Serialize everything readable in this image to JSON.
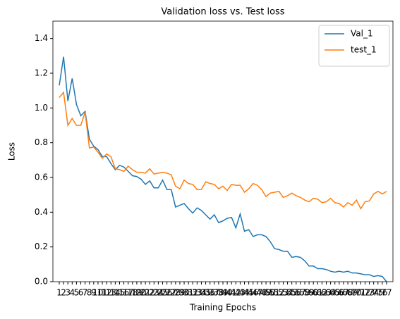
{
  "chart_data": {
    "type": "line",
    "title": "Validation loss vs. Test loss",
    "x_label": "Training Epochs",
    "y_label": "Loss",
    "categories": [
      "1",
      "2",
      "3",
      "4",
      "5",
      "6",
      "7",
      "8",
      "9",
      "10",
      "11",
      "12",
      "13",
      "14",
      "15",
      "16",
      "17",
      "18",
      "19",
      "20",
      "21",
      "22",
      "23",
      "24",
      "25",
      "26",
      "27",
      "28",
      "29",
      "30",
      "31",
      "32",
      "33",
      "34",
      "35",
      "36",
      "37",
      "38",
      "39",
      "40",
      "41",
      "42",
      "43",
      "44",
      "45",
      "46",
      "47",
      "48",
      "49",
      "50",
      "51",
      "52",
      "53",
      "54",
      "55",
      "56",
      "57",
      "58",
      "59",
      "60",
      "61",
      "62",
      "63",
      "64",
      "65",
      "66",
      "67",
      "68",
      "69",
      "70",
      "71",
      "72",
      "73",
      "74",
      "75",
      "76",
      "77"
    ],
    "series": [
      {
        "name": "Val_1",
        "color": "#1f77b4",
        "values": [
          1.13,
          1.295,
          1.04,
          1.17,
          1.02,
          0.955,
          0.98,
          0.82,
          0.78,
          0.76,
          0.72,
          0.72,
          0.68,
          0.645,
          0.67,
          0.66,
          0.635,
          0.61,
          0.605,
          0.59,
          0.56,
          0.58,
          0.54,
          0.54,
          0.585,
          0.53,
          0.53,
          0.43,
          0.44,
          0.45,
          0.42,
          0.395,
          0.425,
          0.41,
          0.385,
          0.36,
          0.385,
          0.34,
          0.35,
          0.365,
          0.37,
          0.31,
          0.39,
          0.29,
          0.3,
          0.26,
          0.27,
          0.27,
          0.26,
          0.23,
          0.19,
          0.185,
          0.175,
          0.175,
          0.14,
          0.145,
          0.14,
          0.12,
          0.09,
          0.09,
          0.075,
          0.075,
          0.07,
          0.06,
          0.055,
          0.06,
          0.055,
          0.06,
          0.05,
          0.05,
          0.045,
          0.04,
          0.04,
          0.03,
          0.035,
          0.03,
          0.0
        ]
      },
      {
        "name": "test_1",
        "color": "#ff7f0e",
        "values": [
          1.06,
          1.09,
          0.9,
          0.94,
          0.9,
          0.9,
          0.975,
          0.77,
          0.775,
          0.745,
          0.71,
          0.735,
          0.72,
          0.65,
          0.645,
          0.635,
          0.665,
          0.645,
          0.63,
          0.63,
          0.625,
          0.65,
          0.62,
          0.625,
          0.63,
          0.625,
          0.615,
          0.55,
          0.535,
          0.585,
          0.565,
          0.56,
          0.53,
          0.53,
          0.575,
          0.565,
          0.56,
          0.535,
          0.55,
          0.525,
          0.56,
          0.555,
          0.555,
          0.515,
          0.535,
          0.565,
          0.555,
          0.53,
          0.49,
          0.51,
          0.515,
          0.52,
          0.485,
          0.495,
          0.51,
          0.495,
          0.485,
          0.47,
          0.46,
          0.48,
          0.475,
          0.455,
          0.46,
          0.48,
          0.455,
          0.45,
          0.43,
          0.455,
          0.44,
          0.47,
          0.42,
          0.46,
          0.465,
          0.505,
          0.52,
          0.505,
          0.52
        ]
      }
    ],
    "ylim": [
      0,
      1.5
    ],
    "yticks": [
      {
        "value": 0,
        "label": "0.0"
      },
      0.2,
      0.4,
      0.6,
      0.8,
      {
        "value": 1,
        "label": "1.0"
      },
      1.2,
      1.4
    ],
    "grid": false,
    "legend": "upper right"
  }
}
